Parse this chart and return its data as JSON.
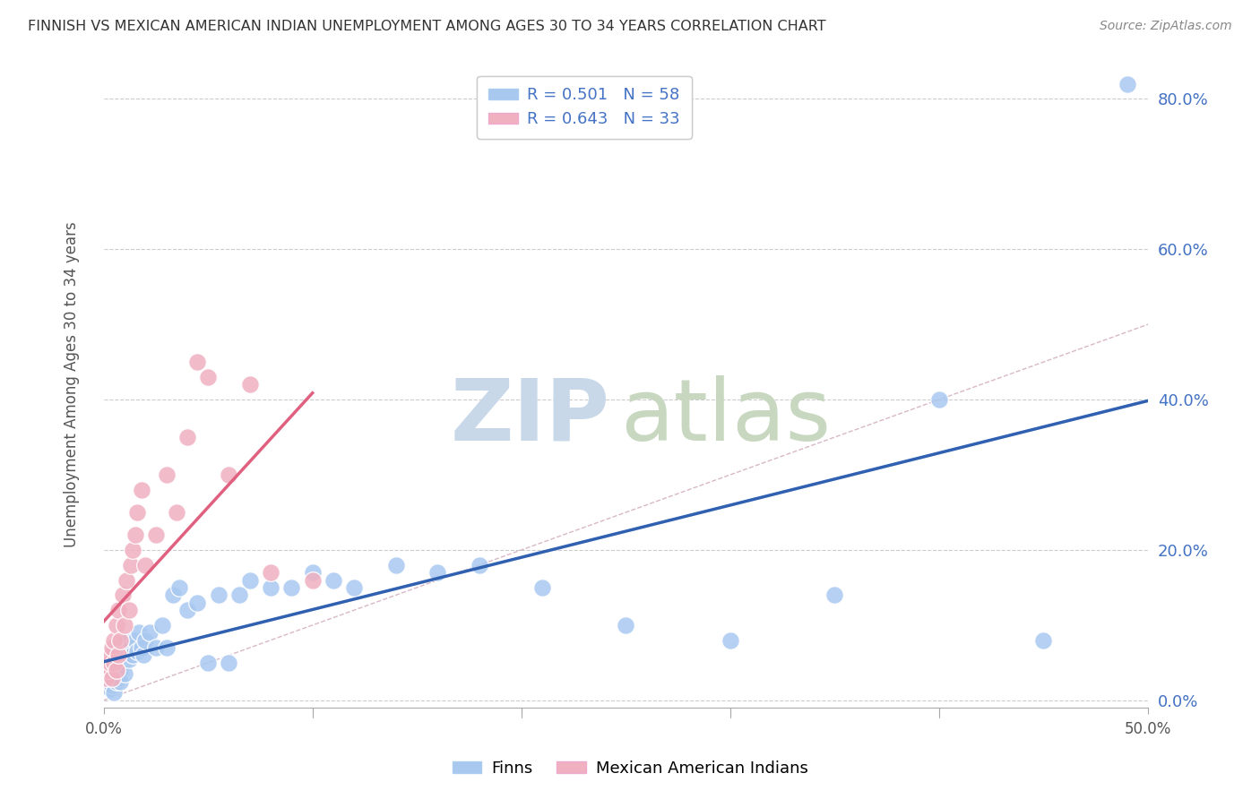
{
  "title": "FINNISH VS MEXICAN AMERICAN INDIAN UNEMPLOYMENT AMONG AGES 30 TO 34 YEARS CORRELATION CHART",
  "source": "Source: ZipAtlas.com",
  "ylabel": "Unemployment Among Ages 30 to 34 years",
  "xlim": [
    0.0,
    0.5
  ],
  "ylim": [
    -0.01,
    0.85
  ],
  "x_ticks": [
    0.0,
    0.1,
    0.2,
    0.3,
    0.4,
    0.5
  ],
  "x_tick_labels": [
    "0.0%",
    "",
    "",
    "",
    "",
    "50.0%"
  ],
  "y_ticks": [
    0.0,
    0.2,
    0.4,
    0.6,
    0.8
  ],
  "y_tick_labels": [
    "0.0%",
    "20.0%",
    "40.0%",
    "60.0%",
    "80.0%"
  ],
  "blue_color": "#a8c8f0",
  "pink_color": "#f0b0c0",
  "blue_line_color": "#3060b0",
  "pink_line_color": "#e06080",
  "diag_color": "#d8b8c8",
  "R_blue": 0.501,
  "N_blue": 58,
  "R_pink": 0.643,
  "N_pink": 33,
  "blue_x": [
    0.001,
    0.002,
    0.002,
    0.003,
    0.003,
    0.004,
    0.004,
    0.005,
    0.005,
    0.005,
    0.006,
    0.006,
    0.007,
    0.007,
    0.008,
    0.008,
    0.009,
    0.009,
    0.01,
    0.01,
    0.011,
    0.012,
    0.013,
    0.014,
    0.015,
    0.016,
    0.017,
    0.018,
    0.019,
    0.02,
    0.022,
    0.025,
    0.028,
    0.03,
    0.033,
    0.036,
    0.04,
    0.045,
    0.05,
    0.055,
    0.06,
    0.065,
    0.07,
    0.08,
    0.09,
    0.1,
    0.11,
    0.12,
    0.14,
    0.16,
    0.18,
    0.21,
    0.25,
    0.3,
    0.35,
    0.4,
    0.45,
    0.49
  ],
  "blue_y": [
    0.02,
    0.025,
    0.03,
    0.015,
    0.04,
    0.02,
    0.05,
    0.01,
    0.03,
    0.06,
    0.025,
    0.04,
    0.03,
    0.055,
    0.04,
    0.025,
    0.05,
    0.07,
    0.035,
    0.06,
    0.08,
    0.055,
    0.07,
    0.06,
    0.08,
    0.065,
    0.09,
    0.07,
    0.06,
    0.08,
    0.09,
    0.07,
    0.1,
    0.07,
    0.14,
    0.15,
    0.12,
    0.13,
    0.05,
    0.14,
    0.05,
    0.14,
    0.16,
    0.15,
    0.15,
    0.17,
    0.16,
    0.15,
    0.18,
    0.17,
    0.18,
    0.15,
    0.1,
    0.08,
    0.14,
    0.4,
    0.08,
    0.82
  ],
  "pink_x": [
    0.001,
    0.002,
    0.003,
    0.003,
    0.004,
    0.004,
    0.005,
    0.005,
    0.006,
    0.006,
    0.007,
    0.007,
    0.008,
    0.009,
    0.01,
    0.011,
    0.012,
    0.013,
    0.014,
    0.015,
    0.016,
    0.018,
    0.02,
    0.025,
    0.03,
    0.035,
    0.04,
    0.045,
    0.05,
    0.06,
    0.07,
    0.08,
    0.1
  ],
  "pink_y": [
    0.03,
    0.04,
    0.05,
    0.06,
    0.03,
    0.07,
    0.05,
    0.08,
    0.04,
    0.1,
    0.06,
    0.12,
    0.08,
    0.14,
    0.1,
    0.16,
    0.12,
    0.18,
    0.2,
    0.22,
    0.25,
    0.28,
    0.18,
    0.22,
    0.3,
    0.25,
    0.35,
    0.45,
    0.43,
    0.3,
    0.42,
    0.17,
    0.16
  ]
}
